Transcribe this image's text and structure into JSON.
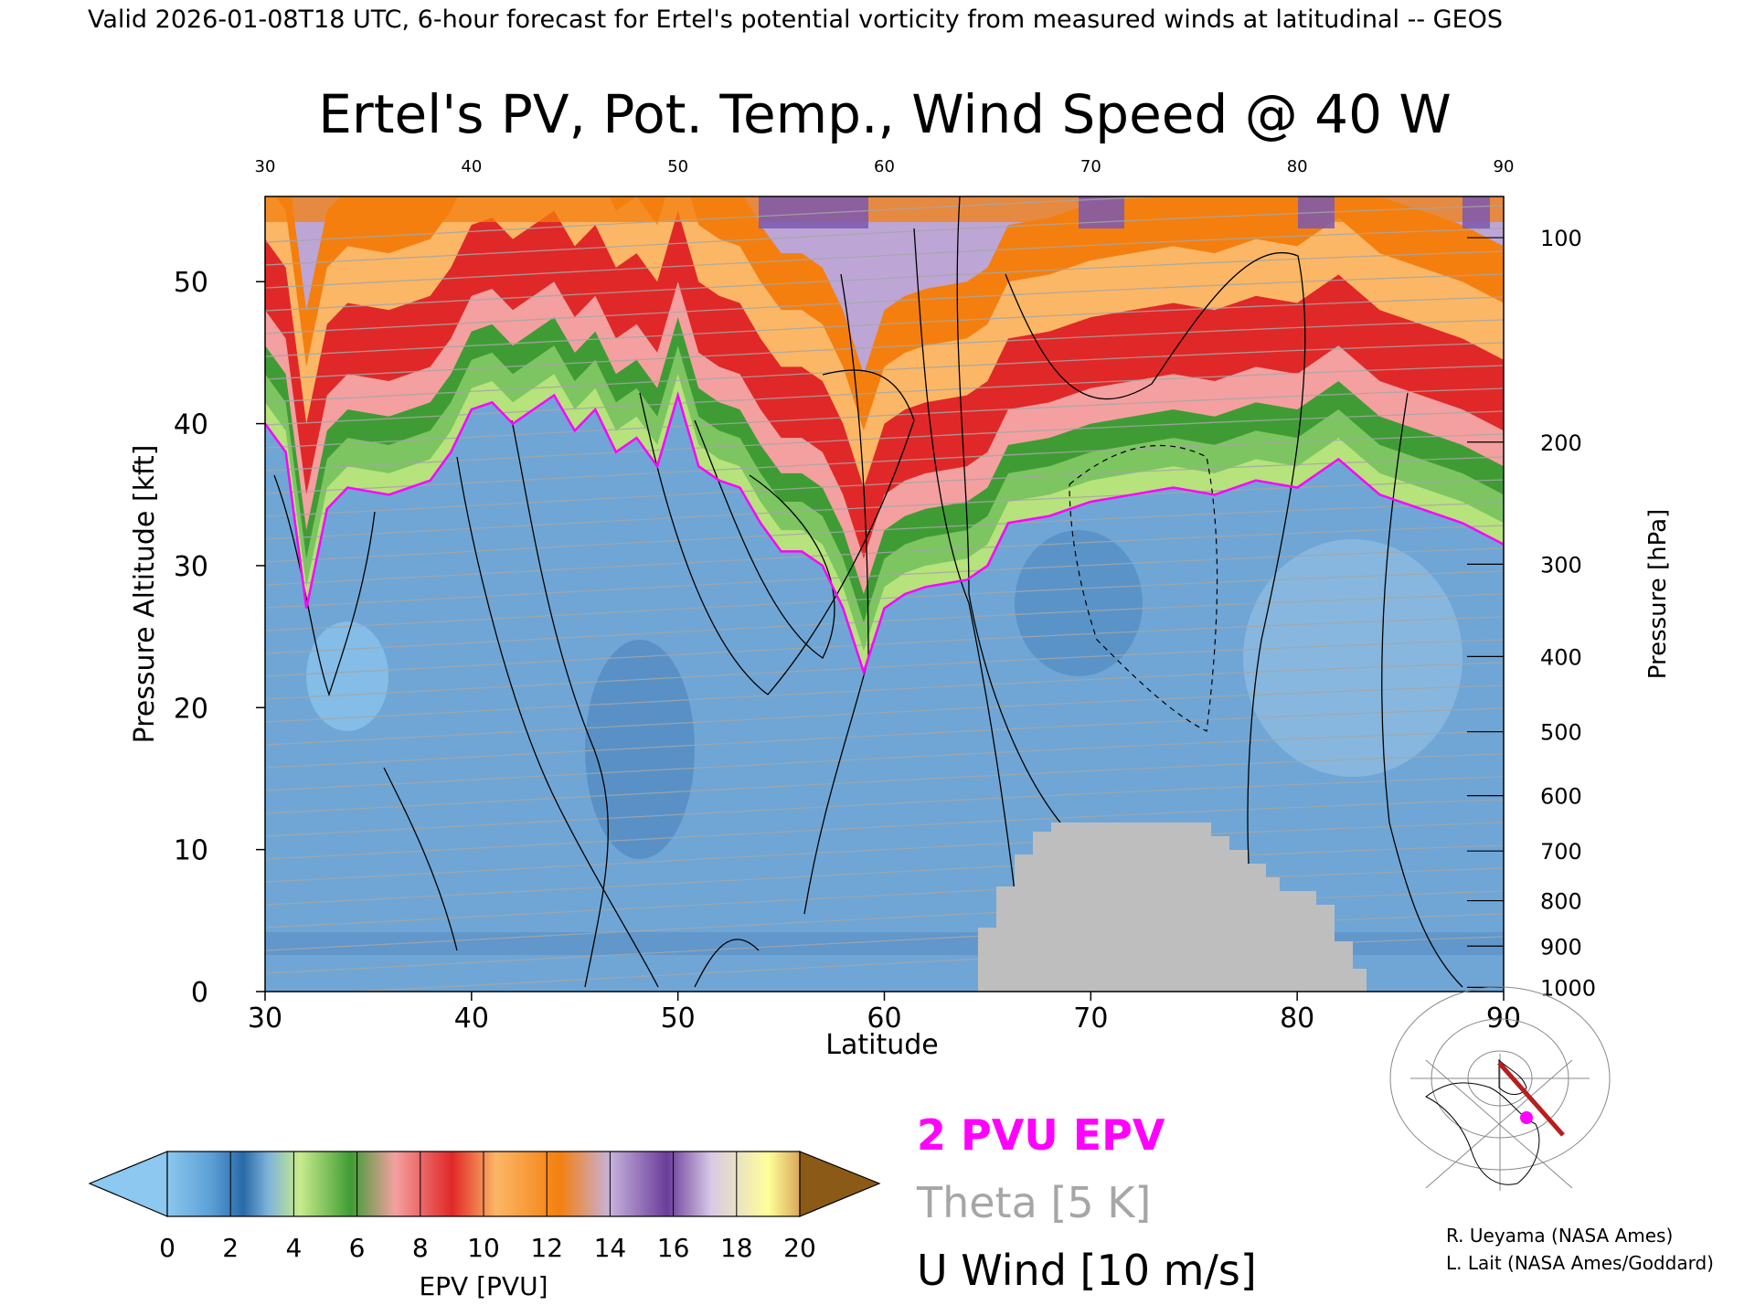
{
  "header": "Valid 2026-01-08T18 UTC, 6-hour forecast for Ertel's potential vorticity from measured winds at latitudinal -- GEOS",
  "chart_data": {
    "type": "heatmap",
    "title": "Ertel's PV, Pot. Temp., Wind Speed @ 40 W",
    "xlabel": "Latitude",
    "ylabel_left": "Pressure Altitude [kft]",
    "ylabel_right": "Pressure [hPa]",
    "xlim": [
      30,
      90
    ],
    "ylim_kft": [
      0,
      56
    ],
    "x_ticks": [
      "30",
      "40",
      "50",
      "60",
      "70",
      "80",
      "90"
    ],
    "top_ticks": [
      "30",
      "40",
      "50",
      "60",
      "70",
      "80",
      "90"
    ],
    "y_ticks": [
      "0",
      "10",
      "20",
      "30",
      "40",
      "50"
    ],
    "pressure_ticks": [
      {
        "label": "100",
        "kft": 53.1
      },
      {
        "label": "200",
        "kft": 38.7
      },
      {
        "label": "300",
        "kft": 30.1
      },
      {
        "label": "400",
        "kft": 23.6
      },
      {
        "label": "500",
        "kft": 18.3
      },
      {
        "label": "600",
        "kft": 13.8
      },
      {
        "label": "700",
        "kft": 9.9
      },
      {
        "label": "800",
        "kft": 6.4
      },
      {
        "label": "900",
        "kft": 3.2
      },
      {
        "label": "1000",
        "kft": 0.3
      }
    ],
    "tropopause_2pvu_kft": [
      [
        30,
        40
      ],
      [
        31,
        38
      ],
      [
        32,
        27
      ],
      [
        33,
        34
      ],
      [
        34,
        35.5
      ],
      [
        36,
        35
      ],
      [
        38,
        36
      ],
      [
        39,
        38
      ],
      [
        40,
        41
      ],
      [
        41,
        41.5
      ],
      [
        42,
        40
      ],
      [
        43,
        41
      ],
      [
        44,
        42
      ],
      [
        45,
        39.5
      ],
      [
        46,
        41
      ],
      [
        47,
        38
      ],
      [
        48,
        39
      ],
      [
        49,
        37
      ],
      [
        50,
        42
      ],
      [
        51,
        37
      ],
      [
        52,
        36
      ],
      [
        53,
        35.5
      ],
      [
        54,
        33
      ],
      [
        55,
        31
      ],
      [
        56,
        31
      ],
      [
        57,
        30
      ],
      [
        58,
        27
      ],
      [
        59,
        22.5
      ],
      [
        60,
        27
      ],
      [
        61,
        28
      ],
      [
        62,
        28.5
      ],
      [
        64,
        29
      ],
      [
        65,
        30
      ],
      [
        66,
        33
      ],
      [
        68,
        33.5
      ],
      [
        70,
        34.5
      ],
      [
        72,
        35
      ],
      [
        74,
        35.5
      ],
      [
        76,
        35
      ],
      [
        78,
        36
      ],
      [
        80,
        35.5
      ],
      [
        82,
        37.5
      ],
      [
        84,
        35
      ],
      [
        86,
        34
      ],
      [
        88,
        33
      ],
      [
        90,
        31.5
      ]
    ],
    "pv_colorbar": {
      "label": "EPV [PVU]",
      "ticks": [
        "0",
        "2",
        "4",
        "6",
        "8",
        "10",
        "12",
        "14",
        "16",
        "18",
        "20"
      ],
      "colors": [
        "#5b9fd6",
        "#2f6fae",
        "#b6e37c",
        "#3f9c35",
        "#f4a0a0",
        "#e02828",
        "#fbb766",
        "#f47f0f",
        "#bda6d6",
        "#6a3d9a",
        "#ffff99"
      ]
    },
    "legend": [
      {
        "text": "2 PVU EPV",
        "color": "#ff00ff"
      },
      {
        "text": "Theta [5 K]",
        "color": "#a6a6a6"
      },
      {
        "text": "U Wind [10 m/s]",
        "color": "#000000"
      }
    ],
    "credits": [
      "R. Ueyama (NASA Ames)",
      "L. Lait (NASA Ames/Goddard)"
    ]
  }
}
